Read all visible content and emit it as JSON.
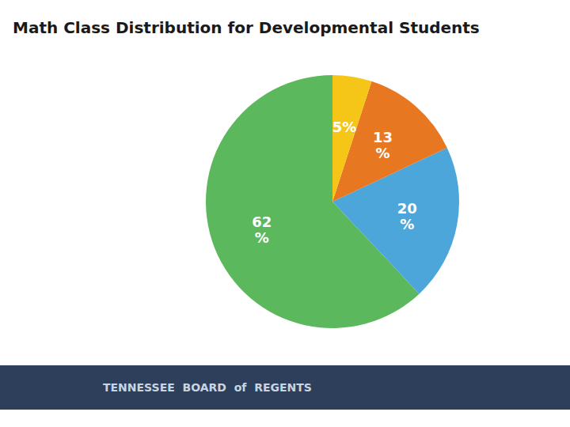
{
  "chart_data": {
    "type": "pie",
    "title": "Math Class Distribution for Developmental Students",
    "values": [
      62,
      20,
      13,
      5
    ],
    "value_labels": [
      "62\n%",
      "20\n%",
      "13\n%",
      "5%"
    ],
    "colors": [
      "#5cb85c",
      "#4da6d9",
      "#e87722",
      "#f5c518"
    ],
    "data_labels": true,
    "annotations": [
      "TENNESSEE  BOARD  of  REGENTS"
    ]
  }
}
